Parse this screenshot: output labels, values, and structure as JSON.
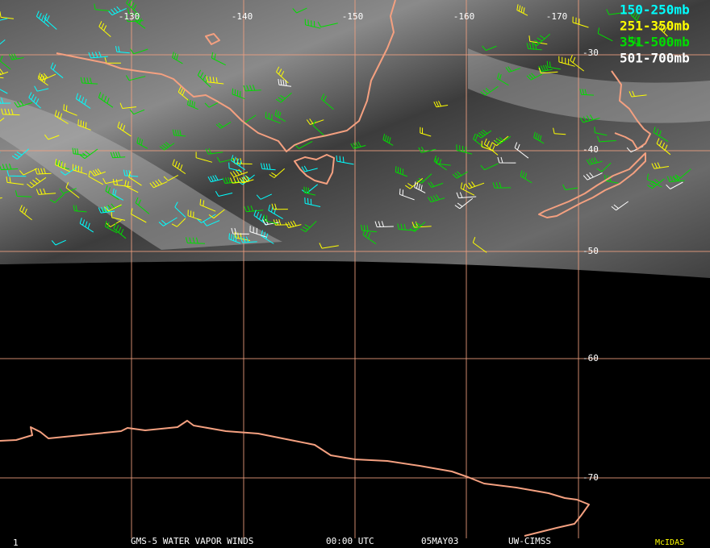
{
  "map": {
    "longitude_labels": [
      "-130",
      "-140",
      "-150",
      "-160",
      "-170"
    ],
    "latitude_labels": [
      "-30",
      "-40",
      "-50",
      "-60",
      "-70"
    ],
    "legend": [
      {
        "label": "150-250mb",
        "color": "#00ffff"
      },
      {
        "label": "251-350mb",
        "color": "#ffff00"
      },
      {
        "label": "351-500mb",
        "color": "#00dd00"
      },
      {
        "label": "501-700mb",
        "color": "#ffffff"
      }
    ],
    "footer": {
      "frame": "1",
      "product": "GMS-5 WATER VAPOR WINDS",
      "time": "00:00 UTC",
      "date": "05MAY03",
      "source": "UW-CIMSS",
      "software": "McIDAS"
    }
  }
}
